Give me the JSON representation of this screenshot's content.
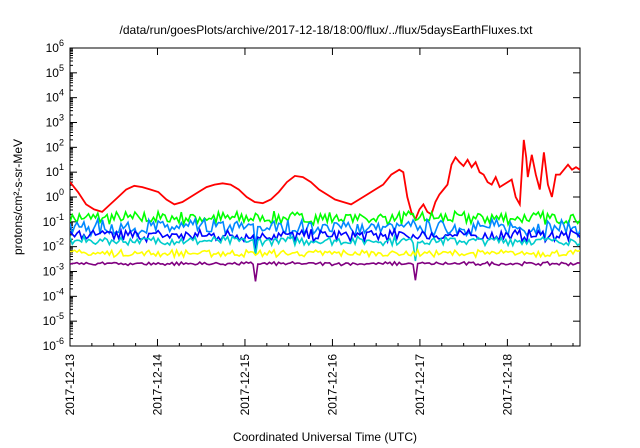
{
  "chart_data": {
    "type": "line",
    "title": "/data/run/goesPlots/archive/2017-12-18/18:00/flux/../flux/5daysEarthFluxes.txt",
    "xlabel": "Coordinated Universal Time (UTC)",
    "ylabel": "protons/cm²-s-sr-MeV",
    "y_scale": "log",
    "ylim_exponents": [
      -6,
      6
    ],
    "y_ticks": [
      {
        "base": "10",
        "exp": "6",
        "e": 6
      },
      {
        "base": "10",
        "exp": "5",
        "e": 5
      },
      {
        "base": "10",
        "exp": "4",
        "e": 4
      },
      {
        "base": "10",
        "exp": "3",
        "e": 3
      },
      {
        "base": "10",
        "exp": "2",
        "e": 2
      },
      {
        "base": "10",
        "exp": "1",
        "e": 1
      },
      {
        "base": "10",
        "exp": "0",
        "e": 0
      },
      {
        "base": "10",
        "exp": "-1",
        "e": -1
      },
      {
        "base": "10",
        "exp": "-2",
        "e": -2
      },
      {
        "base": "10",
        "exp": "-3",
        "e": -3
      },
      {
        "base": "10",
        "exp": "-4",
        "e": -4
      },
      {
        "base": "10",
        "exp": "-5",
        "e": -5
      },
      {
        "base": "10",
        "exp": "-6",
        "e": -6
      }
    ],
    "x_ticks": [
      "2017-12-13",
      "2017-12-14",
      "2017-12-15",
      "2017-12-16",
      "2017-12-17",
      "2017-12-18"
    ],
    "x_range_days": [
      0,
      5.83
    ],
    "grid": false,
    "legend": "none",
    "series": [
      {
        "color": "#ff0000",
        "log10_values": [
          [
            0.0,
            0.6
          ],
          [
            0.1,
            0.2
          ],
          [
            0.2,
            -0.3
          ],
          [
            0.3,
            -0.5
          ],
          [
            0.4,
            -0.6
          ],
          [
            0.5,
            -0.3
          ],
          [
            0.6,
            0.0
          ],
          [
            0.7,
            0.3
          ],
          [
            0.8,
            0.45
          ],
          [
            0.9,
            0.4
          ],
          [
            1.0,
            0.3
          ],
          [
            1.1,
            0.2
          ],
          [
            1.2,
            -0.1
          ],
          [
            1.3,
            -0.3
          ],
          [
            1.4,
            -0.2
          ],
          [
            1.5,
            0.0
          ],
          [
            1.6,
            0.2
          ],
          [
            1.7,
            0.4
          ],
          [
            1.8,
            0.5
          ],
          [
            1.9,
            0.55
          ],
          [
            2.0,
            0.5
          ],
          [
            2.1,
            0.3
          ],
          [
            2.2,
            0.0
          ],
          [
            2.3,
            -0.2
          ],
          [
            2.4,
            -0.25
          ],
          [
            2.5,
            -0.1
          ],
          [
            2.6,
            0.2
          ],
          [
            2.7,
            0.6
          ],
          [
            2.8,
            0.85
          ],
          [
            2.9,
            0.8
          ],
          [
            3.0,
            0.6
          ],
          [
            3.1,
            0.3
          ],
          [
            3.2,
            0.1
          ],
          [
            3.3,
            -0.1
          ],
          [
            3.4,
            -0.2
          ],
          [
            3.5,
            -0.3
          ],
          [
            3.6,
            -0.1
          ],
          [
            3.7,
            0.1
          ],
          [
            3.8,
            0.3
          ],
          [
            3.9,
            0.5
          ],
          [
            4.0,
            0.9
          ],
          [
            4.1,
            1.1
          ],
          [
            4.15,
            1.0
          ],
          [
            4.2,
            0.0
          ],
          [
            4.25,
            -0.6
          ],
          [
            4.3,
            -0.9
          ],
          [
            4.35,
            -0.5
          ],
          [
            4.4,
            -0.3
          ],
          [
            4.45,
            -0.6
          ],
          [
            4.5,
            -0.7
          ],
          [
            4.55,
            -0.2
          ],
          [
            4.6,
            0.1
          ],
          [
            4.65,
            0.3
          ],
          [
            4.7,
            0.5
          ],
          [
            4.75,
            1.3
          ],
          [
            4.8,
            1.6
          ],
          [
            4.85,
            1.4
          ],
          [
            4.9,
            1.25
          ],
          [
            4.95,
            1.5
          ],
          [
            5.0,
            1.2
          ],
          [
            5.05,
            1.4
          ],
          [
            5.1,
            1.0
          ],
          [
            5.15,
            0.9
          ],
          [
            5.2,
            0.6
          ],
          [
            5.25,
            0.5
          ],
          [
            5.3,
            0.8
          ],
          [
            5.35,
            0.4
          ],
          [
            5.4,
            0.5
          ],
          [
            5.45,
            0.6
          ],
          [
            5.5,
            0.7
          ],
          [
            5.55,
            0.0
          ],
          [
            5.6,
            -0.3
          ],
          [
            5.65,
            2.3
          ],
          [
            5.68,
            1.6
          ],
          [
            5.7,
            0.8
          ],
          [
            5.75,
            1.7
          ],
          [
            5.8,
            0.9
          ],
          [
            5.85,
            0.3
          ],
          [
            5.9,
            1.8
          ],
          [
            5.95,
            0.5
          ],
          [
            6.0,
            0.0
          ],
          [
            6.05,
            0.9
          ],
          [
            6.1,
            0.9
          ],
          [
            6.15,
            1.1
          ],
          [
            6.2,
            1.3
          ],
          [
            6.25,
            1.1
          ],
          [
            6.3,
            1.2
          ],
          [
            6.35,
            1.1
          ]
        ],
        "log10_x_max": 6.35
      },
      {
        "color": "#00ff00",
        "baseline": -0.9,
        "amplitude": 0.22,
        "dips": []
      },
      {
        "color": "#0088ff",
        "baseline": -1.3,
        "amplitude": 0.28,
        "dips": [
          2.3
        ]
      },
      {
        "color": "#0000ff",
        "baseline": -1.6,
        "amplitude": 0.2,
        "dips": [
          2.3
        ]
      },
      {
        "color": "#00cccc",
        "baseline": -1.8,
        "amplitude": 0.15,
        "dips": [
          2.3,
          4.3
        ]
      },
      {
        "color": "#ffff00",
        "baseline": -2.3,
        "amplitude": 0.12,
        "dips": []
      },
      {
        "color": "#800080",
        "baseline": -2.7,
        "amplitude": 0.06,
        "dips": [
          2.3,
          4.3
        ]
      }
    ]
  }
}
